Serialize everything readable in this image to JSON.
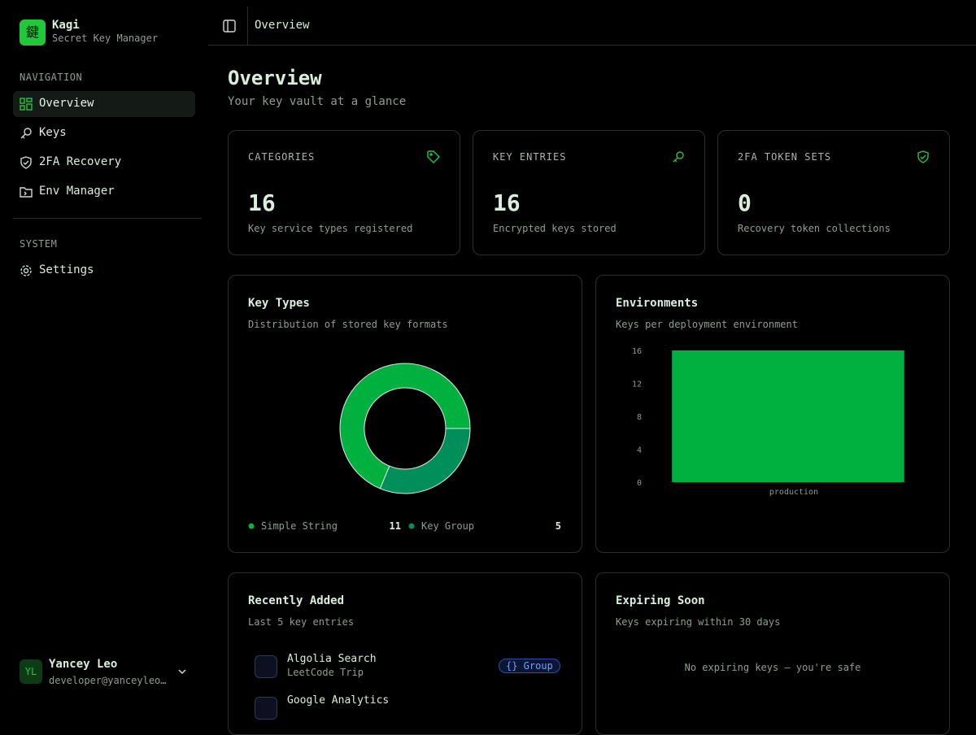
{
  "sidebar": {
    "logo": "鍵",
    "app_name": "Kagi",
    "app_subtitle": "Secret Key Manager",
    "sections": [
      {
        "title": "NAVIGATION",
        "items": [
          "Overview",
          "Keys",
          "2FA Recovery",
          "Env Manager"
        ]
      },
      {
        "title": "SYSTEM",
        "items": [
          "Settings"
        ]
      }
    ],
    "user": {
      "initials": "YL",
      "name": "Yancey Leo",
      "email": "developer@yanceyleo…"
    }
  },
  "header": {
    "title": "Overview"
  },
  "page": {
    "title": "Overview",
    "subtitle": "Your key vault at a glance"
  },
  "stats": [
    {
      "label": "CATEGORIES",
      "value": 16,
      "caption": "Key service types registered"
    },
    {
      "label": "KEY ENTRIES",
      "value": 16,
      "caption": "Encrypted keys stored"
    },
    {
      "label": "2FA TOKEN SETS",
      "value": 0,
      "caption": "Recovery token collections"
    }
  ],
  "chart_data": [
    {
      "type": "pie",
      "title": "Key Types",
      "subtitle": "Distribution of stored key formats",
      "categories": [
        "Simple String",
        "Key Group"
      ],
      "values": [
        11,
        5
      ],
      "colors": [
        "#00b140",
        "#008f5a"
      ]
    },
    {
      "type": "bar",
      "title": "Environments",
      "subtitle": "Keys per deployment environment",
      "categories": [
        "production"
      ],
      "values": [
        16
      ],
      "color": "#00b140",
      "ylim": [
        0,
        16
      ],
      "yticks": [
        0,
        4,
        8,
        12,
        16
      ]
    }
  ],
  "recent": {
    "title": "Recently Added",
    "subtitle": "Last 5 key entries",
    "items": [
      {
        "name": "Algolia Search",
        "group": "LeetCode Trip",
        "badge": "{} Group"
      },
      {
        "name": "Google Analytics"
      }
    ]
  },
  "expiring": {
    "title": "Expiring Soon",
    "subtitle": "Keys expiring within 30 days",
    "empty": "No expiring keys — you're safe"
  }
}
